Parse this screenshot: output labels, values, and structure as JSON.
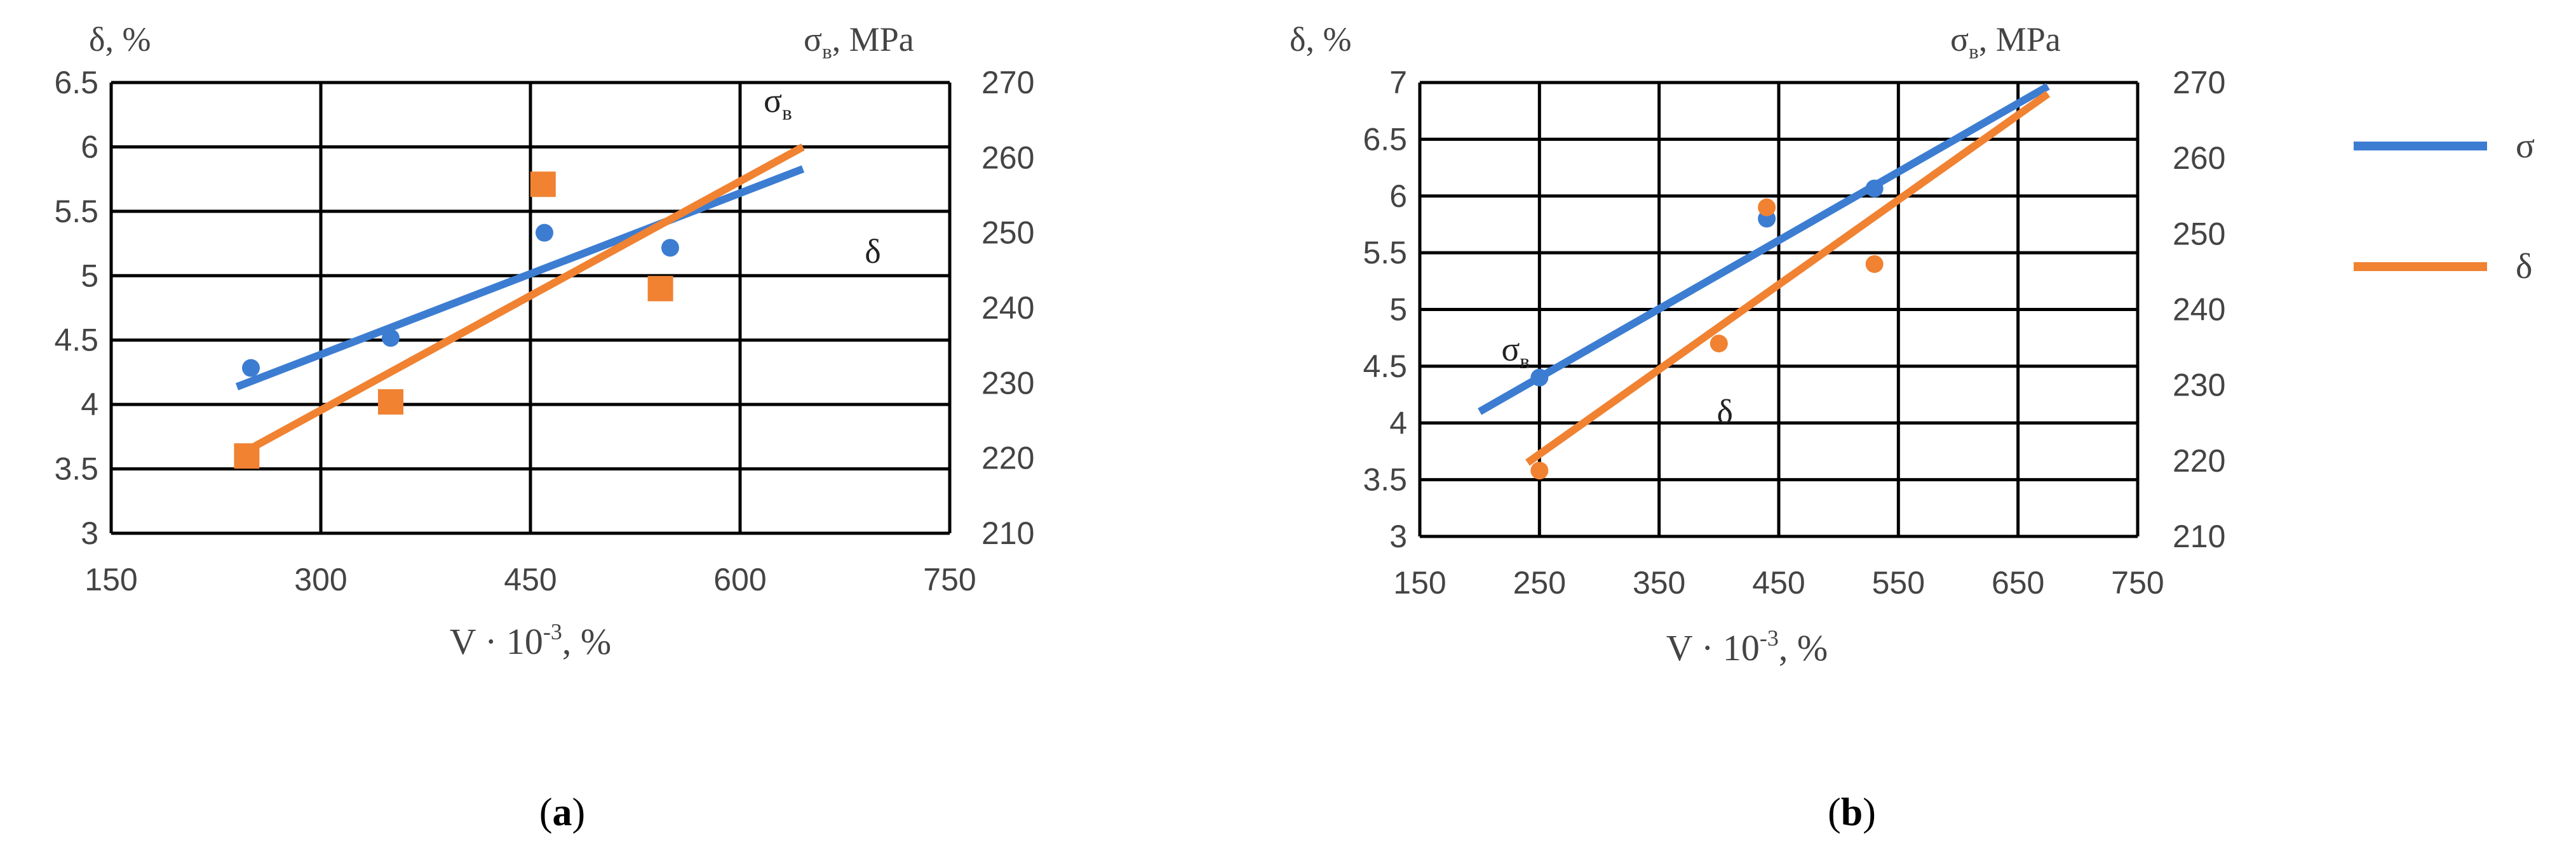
{
  "colors": {
    "sigma": "#3c7dd2",
    "delta": "#f08232",
    "grid": "#000000",
    "text": "#444444"
  },
  "chart_data": [
    {
      "type": "scatter",
      "panel_label": "(a)",
      "y_left_label": "δ, %",
      "y_right_label": "σв, MPa",
      "xlabel": "V · 10-3, %",
      "xlim": [
        150,
        750
      ],
      "x_ticks": [
        "150",
        "300",
        "450",
        "600",
        "750"
      ],
      "ylim_left": [
        3,
        6.5
      ],
      "y_left_ticks": [
        "3",
        "3.5",
        "4",
        "4.5",
        "5",
        "5.5",
        "6",
        "6.5"
      ],
      "ylim_right": [
        210,
        270
      ],
      "y_right_ticks": [
        "210",
        "220",
        "230",
        "240",
        "250",
        "260",
        "270"
      ],
      "grid": true,
      "annotations": [
        {
          "text": "σв",
          "x": 627,
          "y": 6.27
        },
        {
          "text": "δ",
          "x": 695,
          "y": 5.1
        }
      ],
      "series": [
        {
          "axis": "right",
          "color_key": "sigma",
          "marker": "circle",
          "x": [
            250,
            350,
            460,
            550
          ],
          "y": [
            232,
            236,
            250,
            248
          ],
          "trend": {
            "x": [
              240,
              645
            ],
            "y": [
              229.5,
              258.5
            ]
          }
        },
        {
          "axis": "left",
          "color_key": "delta",
          "marker": "square",
          "x": [
            247,
            350,
            459,
            543
          ],
          "y": [
            3.6,
            4.02,
            5.71,
            4.9
          ],
          "trend": {
            "x": [
              240,
              645
            ],
            "y": [
              3.6,
              6.0
            ]
          }
        }
      ]
    },
    {
      "type": "scatter",
      "panel_label": "(b)",
      "y_left_label": "δ, %",
      "y_right_label": "σв, MPa",
      "xlabel": "V · 10-3, %",
      "xlim": [
        150,
        750
      ],
      "x_ticks": [
        "150",
        "250",
        "350",
        "450",
        "550",
        "650",
        "750"
      ],
      "ylim_left": [
        3,
        7
      ],
      "y_left_ticks": [
        "3",
        "3.5",
        "4",
        "4.5",
        "5",
        "5.5",
        "6",
        "6.5",
        "7"
      ],
      "ylim_right": [
        210,
        270
      ],
      "y_right_ticks": [
        "210",
        "220",
        "230",
        "240",
        "250",
        "260",
        "270"
      ],
      "grid": true,
      "annotations": [
        {
          "text": "σв",
          "x": 230,
          "y": 4.55
        },
        {
          "text": "δ",
          "x": 405,
          "y": 4.0
        }
      ],
      "series": [
        {
          "axis": "right",
          "color_key": "sigma",
          "marker": "circle",
          "x": [
            250,
            440,
            530
          ],
          "y": [
            231,
            252,
            256
          ],
          "trend": {
            "x": [
              200,
              675
            ],
            "y": [
              226.5,
              269.5
            ]
          }
        },
        {
          "axis": "left",
          "color_key": "delta",
          "marker": "circle",
          "x": [
            250,
            400,
            440,
            530
          ],
          "y": [
            3.58,
            4.7,
            5.9,
            5.4
          ],
          "trend": {
            "x": [
              240,
              675
            ],
            "y": [
              3.65,
              6.9
            ]
          }
        }
      ]
    }
  ],
  "legend": [
    {
      "label": "σ",
      "color_key": "sigma"
    },
    {
      "label": "δ",
      "color_key": "delta"
    }
  ]
}
